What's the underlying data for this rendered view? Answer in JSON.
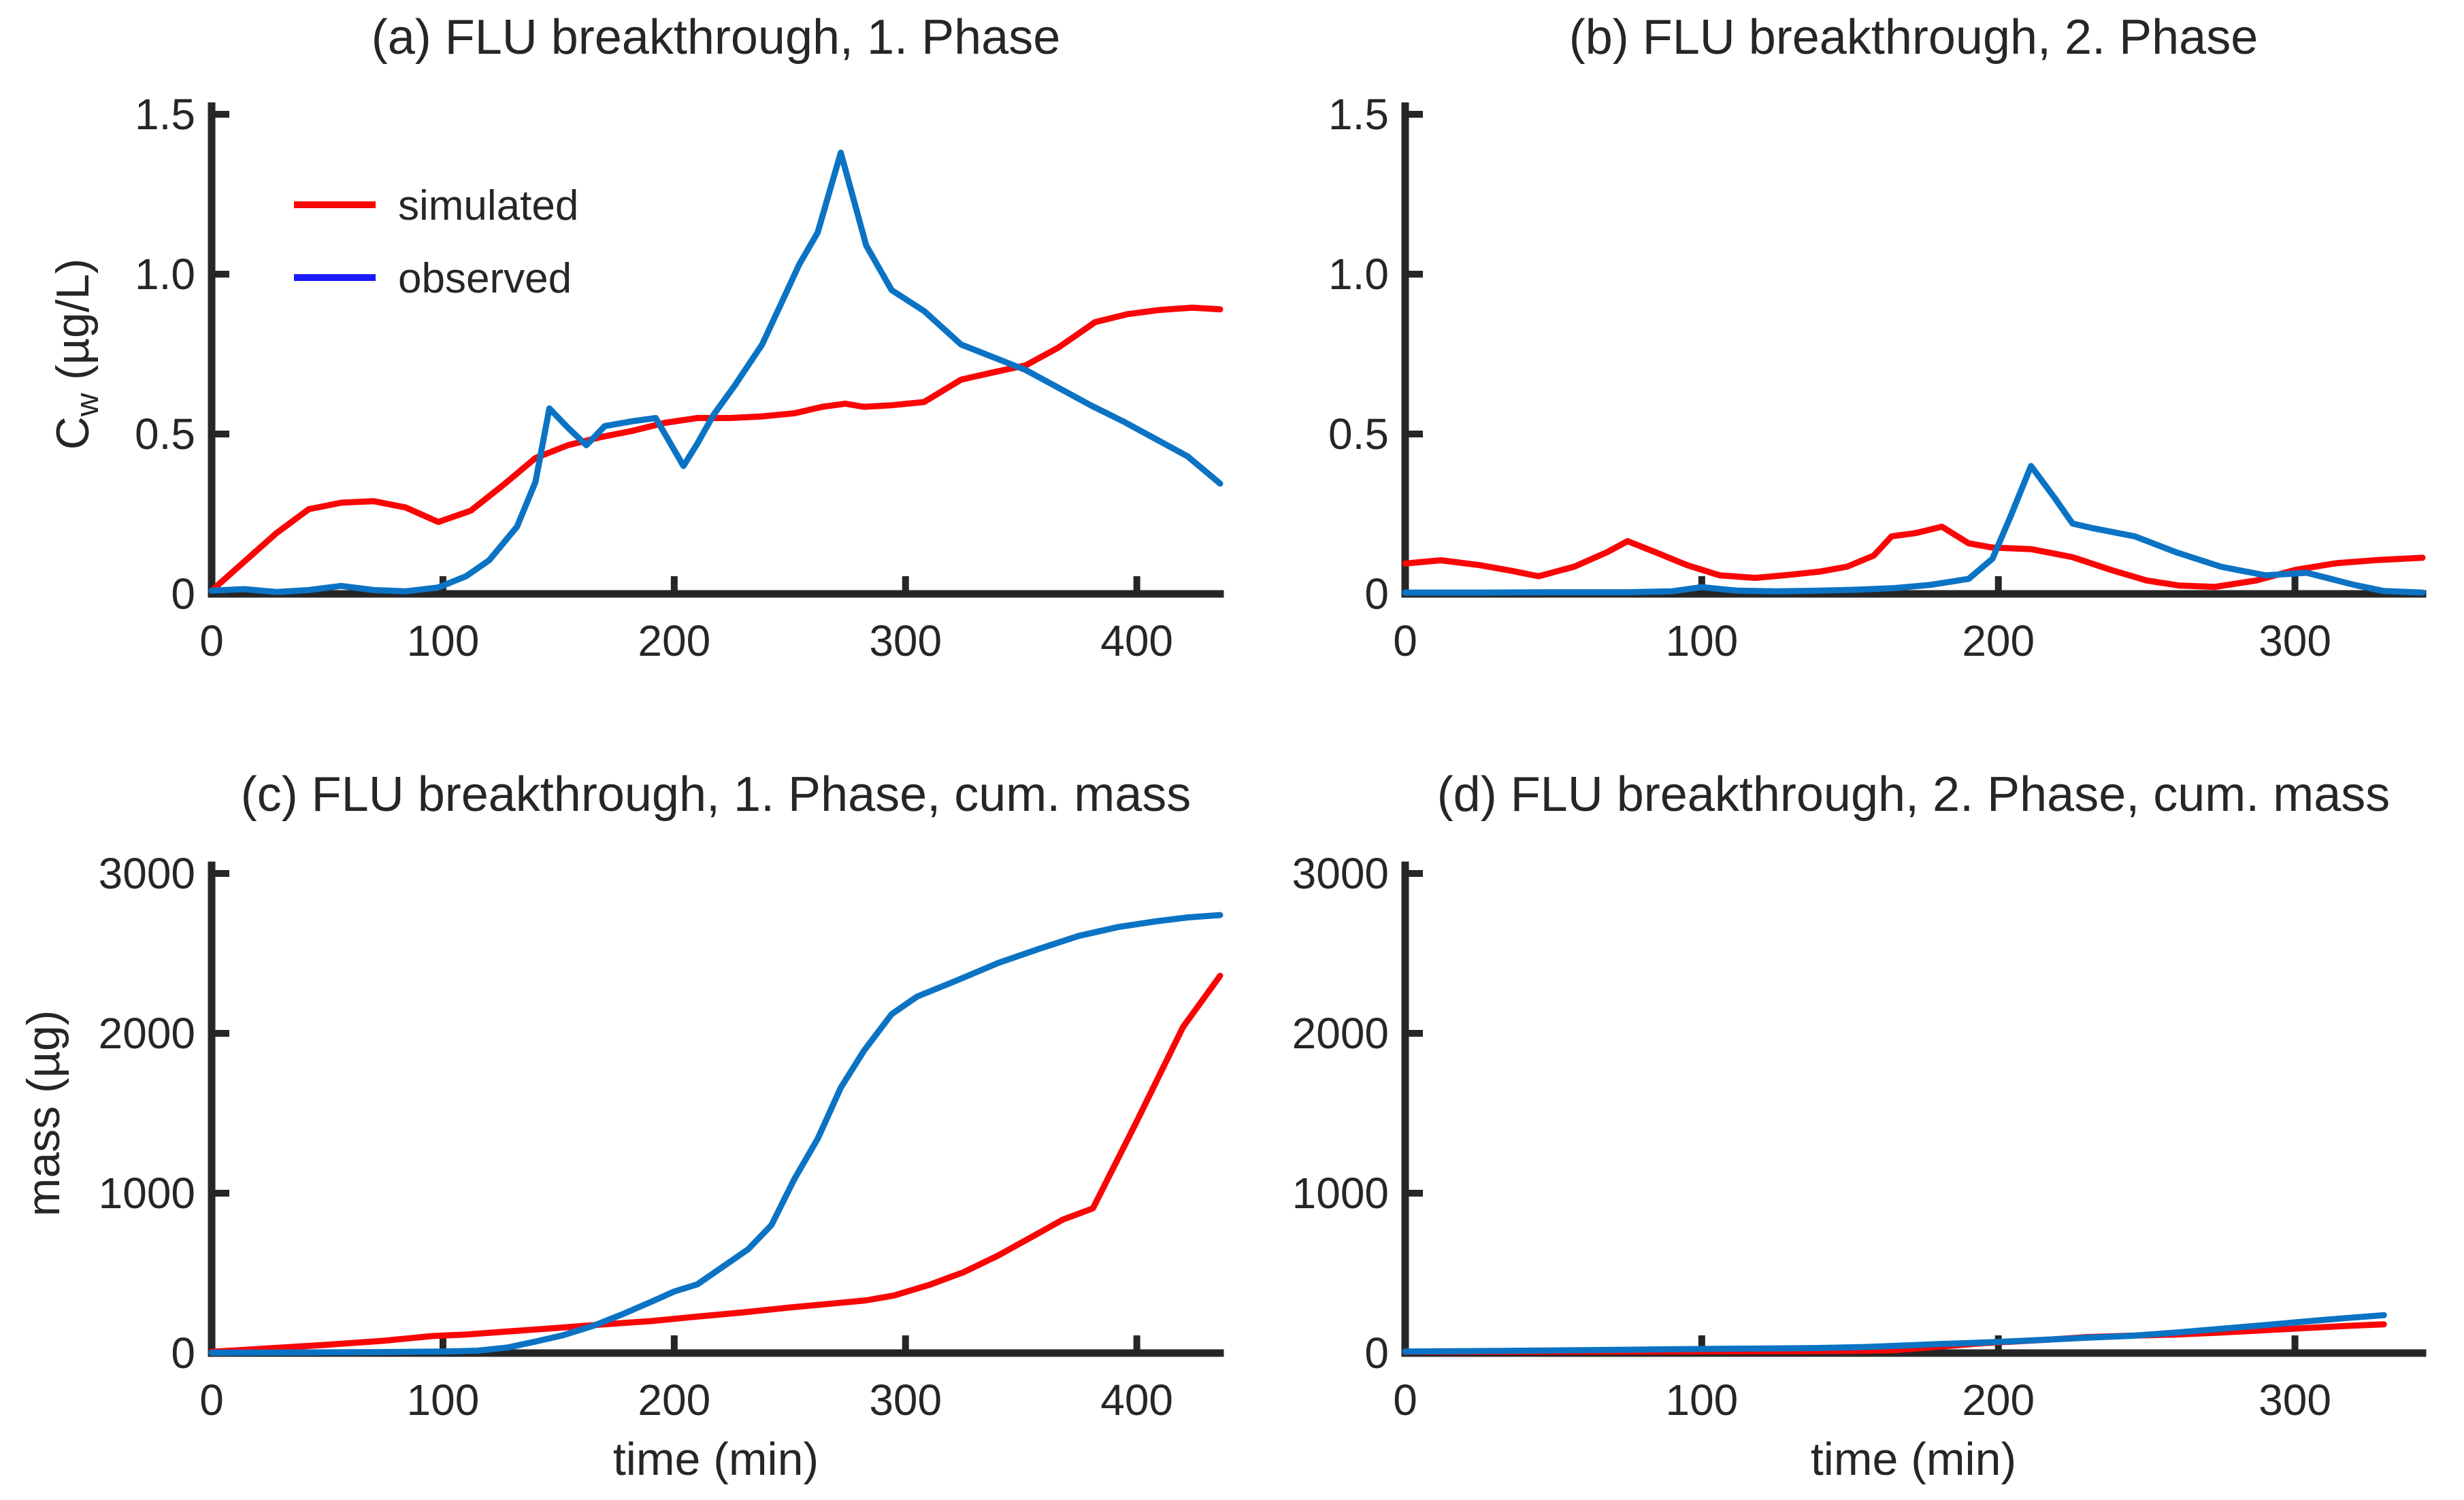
{
  "figure": {
    "background": "#ffffff",
    "text_color": "#262626",
    "axis_color": "#262626"
  },
  "legend": {
    "position": "upper-left-panel-a",
    "entries": [
      {
        "label": "simulated",
        "color": "#fa0505"
      },
      {
        "label": "observed",
        "color": "#1a1aff"
      }
    ]
  },
  "chart_data": [
    {
      "panel": "a",
      "type": "line",
      "title": "(a) FLU breakthrough, 1. Phase",
      "xlabel": "",
      "ylabel": "C_w (µg/L)",
      "xlim": [
        0,
        436
      ],
      "ylim": [
        0,
        1.5
      ],
      "xticks": [
        0,
        100,
        200,
        300,
        400
      ],
      "yticks": [
        0,
        0.5,
        1.0,
        1.5
      ],
      "ytick_labels": [
        "0",
        "0.5",
        "1.0",
        "1.5"
      ],
      "grid": false,
      "series": [
        {
          "name": "simulated",
          "color": "#fa0505",
          "points": [
            [
              0,
              0.01
            ],
            [
              14,
              0.1
            ],
            [
              28,
              0.19
            ],
            [
              42,
              0.265
            ],
            [
              56,
              0.285
            ],
            [
              70,
              0.29
            ],
            [
              84,
              0.27
            ],
            [
              98,
              0.225
            ],
            [
              112,
              0.26
            ],
            [
              126,
              0.34
            ],
            [
              140,
              0.425
            ],
            [
              154,
              0.465
            ],
            [
              168,
              0.49
            ],
            [
              182,
              0.51
            ],
            [
              196,
              0.535
            ],
            [
              210,
              0.55
            ],
            [
              224,
              0.55
            ],
            [
              238,
              0.555
            ],
            [
              252,
              0.565
            ],
            [
              264,
              0.585
            ],
            [
              274,
              0.595
            ],
            [
              282,
              0.585
            ],
            [
              294,
              0.59
            ],
            [
              308,
              0.6
            ],
            [
              324,
              0.67
            ],
            [
              338,
              0.693
            ],
            [
              352,
              0.715
            ],
            [
              366,
              0.77
            ],
            [
              382,
              0.85
            ],
            [
              396,
              0.875
            ],
            [
              410,
              0.888
            ],
            [
              424,
              0.895
            ],
            [
              436,
              0.89
            ]
          ]
        },
        {
          "name": "observed",
          "color": "#0b73c4",
          "points": [
            [
              0,
              0.01
            ],
            [
              14,
              0.015
            ],
            [
              28,
              0.006
            ],
            [
              42,
              0.012
            ],
            [
              56,
              0.025
            ],
            [
              70,
              0.012
            ],
            [
              84,
              0.008
            ],
            [
              98,
              0.02
            ],
            [
              110,
              0.055
            ],
            [
              120,
              0.105
            ],
            [
              132,
              0.21
            ],
            [
              140,
              0.35
            ],
            [
              146,
              0.58
            ],
            [
              154,
              0.52
            ],
            [
              162,
              0.465
            ],
            [
              170,
              0.525
            ],
            [
              182,
              0.54
            ],
            [
              192,
              0.55
            ],
            [
              204,
              0.4
            ],
            [
              210,
              0.47
            ],
            [
              217,
              0.56
            ],
            [
              226,
              0.65
            ],
            [
              238,
              0.78
            ],
            [
              247,
              0.92
            ],
            [
              254,
              1.03
            ],
            [
              262,
              1.13
            ],
            [
              272,
              1.38
            ],
            [
              283,
              1.09
            ],
            [
              294,
              0.95
            ],
            [
              308,
              0.885
            ],
            [
              324,
              0.78
            ],
            [
              338,
              0.74
            ],
            [
              352,
              0.7
            ],
            [
              366,
              0.645
            ],
            [
              380,
              0.59
            ],
            [
              394,
              0.54
            ],
            [
              408,
              0.485
            ],
            [
              422,
              0.43
            ],
            [
              436,
              0.345
            ]
          ]
        }
      ]
    },
    {
      "panel": "b",
      "type": "line",
      "title": "(b) FLU breakthrough, 2. Phase",
      "xlabel": "",
      "ylabel": "",
      "xlim": [
        0,
        343
      ],
      "ylim": [
        0,
        1.5
      ],
      "xticks": [
        0,
        100,
        200,
        300
      ],
      "yticks": [
        0,
        0.5,
        1.0,
        1.5
      ],
      "ytick_labels": [
        "0",
        "0.5",
        "1.0",
        "1.5"
      ],
      "grid": false,
      "series": [
        {
          "name": "simulated",
          "color": "#fa0505",
          "points": [
            [
              0,
              0.095
            ],
            [
              12,
              0.105
            ],
            [
              25,
              0.09
            ],
            [
              36,
              0.072
            ],
            [
              45,
              0.055
            ],
            [
              57,
              0.085
            ],
            [
              68,
              0.13
            ],
            [
              75,
              0.165
            ],
            [
              85,
              0.128
            ],
            [
              95,
              0.09
            ],
            [
              106,
              0.058
            ],
            [
              118,
              0.05
            ],
            [
              130,
              0.06
            ],
            [
              140,
              0.07
            ],
            [
              149,
              0.085
            ],
            [
              158,
              0.12
            ],
            [
              164,
              0.18
            ],
            [
              172,
              0.19
            ],
            [
              181,
              0.21
            ],
            [
              190,
              0.158
            ],
            [
              198,
              0.145
            ],
            [
              211,
              0.14
            ],
            [
              225,
              0.115
            ],
            [
              238,
              0.075
            ],
            [
              250,
              0.042
            ],
            [
              261,
              0.026
            ],
            [
              273,
              0.022
            ],
            [
              287,
              0.042
            ],
            [
              300,
              0.075
            ],
            [
              314,
              0.096
            ],
            [
              328,
              0.106
            ],
            [
              343,
              0.113
            ]
          ]
        },
        {
          "name": "observed",
          "color": "#0b73c4",
          "points": [
            [
              0,
              0.004
            ],
            [
              25,
              0.004
            ],
            [
              50,
              0.005
            ],
            [
              75,
              0.005
            ],
            [
              90,
              0.008
            ],
            [
              100,
              0.021
            ],
            [
              112,
              0.01
            ],
            [
              125,
              0.008
            ],
            [
              140,
              0.01
            ],
            [
              152,
              0.013
            ],
            [
              165,
              0.018
            ],
            [
              177,
              0.028
            ],
            [
              190,
              0.047
            ],
            [
              198,
              0.11
            ],
            [
              204,
              0.24
            ],
            [
              211,
              0.4
            ],
            [
              219,
              0.3
            ],
            [
              225,
              0.22
            ],
            [
              232,
              0.205
            ],
            [
              246,
              0.18
            ],
            [
              260,
              0.13
            ],
            [
              275,
              0.085
            ],
            [
              290,
              0.058
            ],
            [
              304,
              0.066
            ],
            [
              320,
              0.028
            ],
            [
              330,
              0.009
            ],
            [
              343,
              0.004
            ]
          ]
        }
      ]
    },
    {
      "panel": "c",
      "type": "line",
      "title": "(c) FLU breakthrough, 1. Phase, cum. mass",
      "xlabel": "time (min)",
      "ylabel": "mass (µg)",
      "xlim": [
        0,
        436
      ],
      "ylim": [
        0,
        3000
      ],
      "xticks": [
        0,
        100,
        200,
        300,
        400
      ],
      "yticks": [
        0,
        1000,
        2000,
        3000
      ],
      "ytick_labels": [
        "0",
        "1000",
        "2000",
        "3000"
      ],
      "grid": false,
      "series": [
        {
          "name": "simulated",
          "color": "#fa0505",
          "points": [
            [
              0,
              8
            ],
            [
              25,
              30
            ],
            [
              50,
              52
            ],
            [
              75,
              78
            ],
            [
              95,
              106
            ],
            [
              110,
              116
            ],
            [
              130,
              137
            ],
            [
              150,
              158
            ],
            [
              170,
              180
            ],
            [
              190,
              200
            ],
            [
              210,
              228
            ],
            [
              230,
              255
            ],
            [
              250,
              285
            ],
            [
              270,
              312
            ],
            [
              283,
              330
            ],
            [
              295,
              360
            ],
            [
              310,
              425
            ],
            [
              325,
              505
            ],
            [
              340,
              610
            ],
            [
              355,
              730
            ],
            [
              368,
              835
            ],
            [
              381,
              905
            ],
            [
              400,
              1450
            ],
            [
              420,
              2040
            ],
            [
              436,
              2360
            ]
          ]
        },
        {
          "name": "observed",
          "color": "#0b73c4",
          "points": [
            [
              0,
              2
            ],
            [
              40,
              4
            ],
            [
              70,
              6
            ],
            [
              100,
              10
            ],
            [
              115,
              15
            ],
            [
              128,
              35
            ],
            [
              140,
              72
            ],
            [
              152,
              112
            ],
            [
              165,
              170
            ],
            [
              178,
              245
            ],
            [
              190,
              320
            ],
            [
              200,
              385
            ],
            [
              210,
              430
            ],
            [
              220,
              530
            ],
            [
              232,
              650
            ],
            [
              242,
              800
            ],
            [
              252,
              1090
            ],
            [
              262,
              1340
            ],
            [
              272,
              1660
            ],
            [
              282,
              1890
            ],
            [
              294,
              2120
            ],
            [
              305,
              2230
            ],
            [
              322,
              2330
            ],
            [
              340,
              2440
            ],
            [
              358,
              2530
            ],
            [
              375,
              2610
            ],
            [
              392,
              2665
            ],
            [
              408,
              2700
            ],
            [
              422,
              2725
            ],
            [
              436,
              2740
            ]
          ]
        }
      ]
    },
    {
      "panel": "d",
      "type": "line",
      "title": "(d) FLU breakthrough, 2. Phase, cum. mass",
      "xlabel": "time (min)",
      "ylabel": "",
      "xlim": [
        0,
        343
      ],
      "ylim": [
        0,
        3000
      ],
      "xticks": [
        0,
        100,
        200,
        300
      ],
      "yticks": [
        0,
        1000,
        2000,
        3000
      ],
      "ytick_labels": [
        "0",
        "1000",
        "2000",
        "3000"
      ],
      "grid": false,
      "series": [
        {
          "name": "simulated",
          "color": "#fa0505",
          "points": [
            [
              0,
              8
            ],
            [
              30,
              8
            ],
            [
              60,
              9
            ],
            [
              90,
              10
            ],
            [
              120,
              11
            ],
            [
              150,
              13
            ],
            [
              165,
              18
            ],
            [
              180,
              40
            ],
            [
              195,
              62
            ],
            [
              205,
              72
            ],
            [
              218,
              85
            ],
            [
              230,
              100
            ],
            [
              245,
              109
            ],
            [
              260,
              116
            ],
            [
              275,
              128
            ],
            [
              290,
              143
            ],
            [
              305,
              158
            ],
            [
              318,
              170
            ],
            [
              330,
              180
            ]
          ]
        },
        {
          "name": "observed",
          "color": "#0b73c4",
          "points": [
            [
              0,
              10
            ],
            [
              30,
              13
            ],
            [
              60,
              18
            ],
            [
              90,
              24
            ],
            [
              105,
              27
            ],
            [
              120,
              28
            ],
            [
              140,
              32
            ],
            [
              155,
              38
            ],
            [
              169,
              48
            ],
            [
              180,
              56
            ],
            [
              195,
              66
            ],
            [
              205,
              74
            ],
            [
              218,
              85
            ],
            [
              230,
              96
            ],
            [
              245,
              108
            ],
            [
              260,
              128
            ],
            [
              275,
              152
            ],
            [
              290,
              175
            ],
            [
              305,
              200
            ],
            [
              318,
              220
            ],
            [
              330,
              237
            ]
          ]
        }
      ]
    }
  ]
}
